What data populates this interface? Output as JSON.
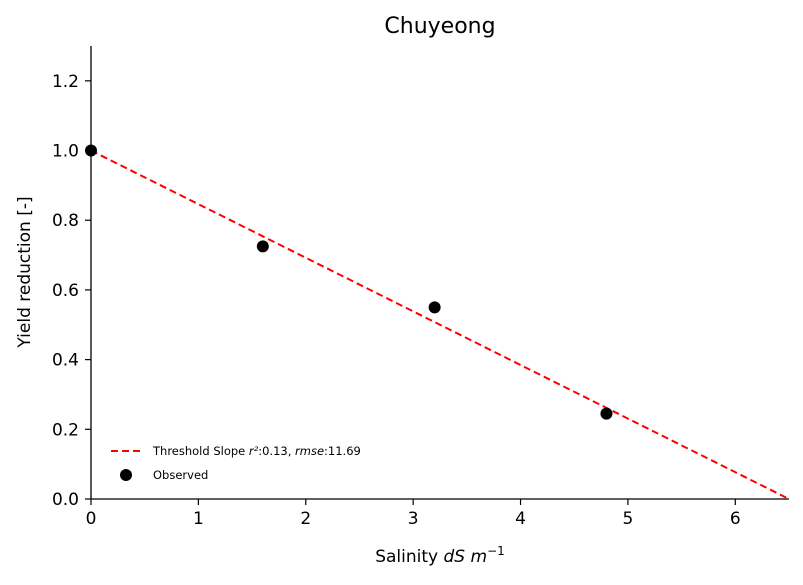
{
  "chart_data": {
    "type": "scatter",
    "title": "Chuyeong",
    "xlabel": {
      "prefix": "Salinity ",
      "unit_var": "dS m",
      "superscript": "−1"
    },
    "ylabel": "Yield reduction [-]",
    "xlim": [
      0,
      6.5
    ],
    "ylim": [
      0,
      1.3
    ],
    "xticks": [
      {
        "value": 0,
        "label": "0"
      },
      {
        "value": 1,
        "label": "1"
      },
      {
        "value": 2,
        "label": "2"
      },
      {
        "value": 3,
        "label": "3"
      },
      {
        "value": 4,
        "label": "4"
      },
      {
        "value": 5,
        "label": "5"
      },
      {
        "value": 6,
        "label": "6"
      }
    ],
    "yticks": [
      {
        "value": 0.0,
        "label": "0.0"
      },
      {
        "value": 0.2,
        "label": "0.2"
      },
      {
        "value": 0.4,
        "label": "0.4"
      },
      {
        "value": 0.6,
        "label": "0.6"
      },
      {
        "value": 0.8,
        "label": "0.8"
      },
      {
        "value": 1.0,
        "label": "1.0"
      },
      {
        "value": 1.2,
        "label": "1.2"
      }
    ],
    "grid": false,
    "legend_position": "lower-left",
    "series": [
      {
        "name": "Threshold Slope",
        "kind": "line",
        "style": "dashed",
        "color": "#ff0000",
        "x": [
          0,
          6.5
        ],
        "y": [
          1.0,
          0.0
        ],
        "legend": {
          "prefix": "Threshold Slope ",
          "r2_label": "r²",
          "r2_value": ":0.13, ",
          "rmse_label": "rmse",
          "rmse_value": ":11.69"
        }
      },
      {
        "name": "Observed",
        "kind": "scatter",
        "color": "#000000",
        "x": [
          0,
          1.6,
          3.2,
          4.8
        ],
        "y": [
          1.0,
          0.725,
          0.55,
          0.245
        ],
        "legend": {
          "label": "Observed"
        }
      }
    ]
  }
}
